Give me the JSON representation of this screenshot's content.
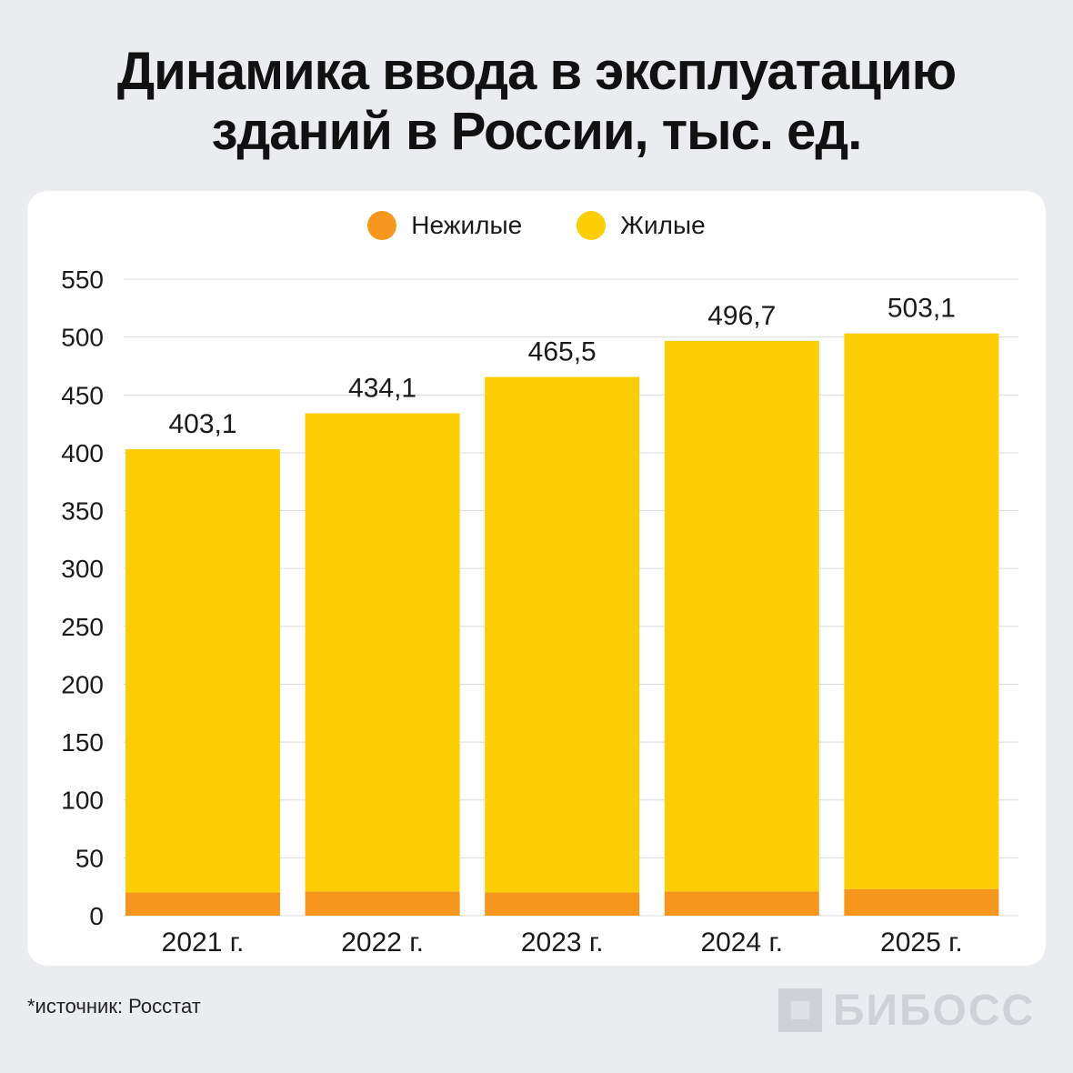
{
  "header": {
    "title_line1": "Динамика ввода в эксплуатацию",
    "title_line2": "зданий в России, тыс. ед."
  },
  "legend": [
    {
      "label": "Нежилые",
      "color": "#f7961d"
    },
    {
      "label": "Жилые",
      "color": "#fdcd05"
    }
  ],
  "footer": {
    "source": "*источник: Росстат",
    "logo_text": "БИБОСС"
  },
  "chart_data": {
    "type": "bar",
    "stacked": true,
    "title": "Динамика ввода в эксплуатацию зданий в России, тыс. ед.",
    "categories": [
      "2021 г.",
      "2022 г.",
      "2023 г.",
      "2024 г.",
      "2025 г."
    ],
    "series": [
      {
        "name": "Нежилые",
        "color": "#f7961d",
        "values": [
          20,
          21,
          20,
          21,
          23
        ]
      },
      {
        "name": "Жилые",
        "color": "#fdcd05",
        "values": [
          383.1,
          413.1,
          445.5,
          475.7,
          480.1
        ]
      }
    ],
    "totals": [
      403.1,
      434.1,
      465.5,
      496.7,
      503.1
    ],
    "total_labels": [
      "403,1",
      "434,1",
      "465,5",
      "496,7",
      "503,1"
    ],
    "yticks": [
      0,
      50,
      100,
      150,
      200,
      250,
      300,
      350,
      400,
      450,
      500,
      550
    ],
    "ylim": [
      0,
      550
    ],
    "grid": true,
    "legend_position": "top-center"
  }
}
